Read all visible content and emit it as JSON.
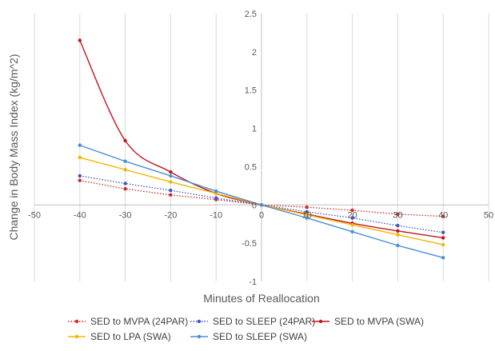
{
  "chart_data": {
    "type": "line",
    "title": "",
    "xlabel": "Minutes of Reallocation",
    "ylabel": "Change in Body Mass Index (kg/m^2)",
    "xlim": [
      -50,
      50
    ],
    "ylim": [
      -1,
      2.5
    ],
    "xticks": [
      -50,
      -40,
      -30,
      -20,
      -10,
      0,
      10,
      20,
      30,
      40,
      50
    ],
    "yticks": [
      -1,
      -0.5,
      0,
      0.5,
      1,
      1.5,
      2,
      2.5
    ],
    "xtick_labels": [
      "-50",
      "-40",
      "-30",
      "-20",
      "-10",
      "0",
      "10",
      "20",
      "30",
      "40",
      "50"
    ],
    "ytick_labels": [
      "-1",
      "-0.5",
      "0",
      "0.5",
      "1",
      "1.5",
      "2",
      "2.5"
    ],
    "grid": "vertical",
    "legend_position": "bottom",
    "x": [
      -40,
      -30,
      -20,
      -10,
      0,
      10,
      20,
      30,
      40
    ],
    "series": [
      {
        "name": "SED to MVPA (24PAR)",
        "color": "#d62728",
        "line_style": "dotted",
        "smooth": false,
        "values": [
          0.32,
          0.21,
          0.13,
          0.07,
          0,
          -0.03,
          -0.07,
          -0.12,
          -0.15
        ]
      },
      {
        "name": "SED to SLEEP (24PAR)",
        "color": "#3a56c4",
        "line_style": "dotted",
        "smooth": false,
        "values": [
          0.38,
          0.28,
          0.19,
          0.09,
          0,
          -0.09,
          -0.17,
          -0.27,
          -0.36
        ]
      },
      {
        "name": "SED to MVPA (SWA)",
        "color": "#c0181d",
        "line_style": "solid",
        "smooth": true,
        "values": [
          2.15,
          0.84,
          0.43,
          0.15,
          0,
          -0.12,
          -0.24,
          -0.34,
          -0.43
        ]
      },
      {
        "name": "SED to LPA (SWA)",
        "color": "#f5b400",
        "line_style": "solid",
        "smooth": false,
        "values": [
          0.62,
          0.46,
          0.3,
          0.15,
          0,
          -0.13,
          -0.26,
          -0.39,
          -0.52
        ]
      },
      {
        "name": "SED to SLEEP (SWA)",
        "color": "#4a8fd6",
        "line_style": "solid",
        "smooth": false,
        "values": [
          0.78,
          0.57,
          0.38,
          0.18,
          0,
          -0.17,
          -0.35,
          -0.53,
          -0.69
        ]
      }
    ]
  }
}
